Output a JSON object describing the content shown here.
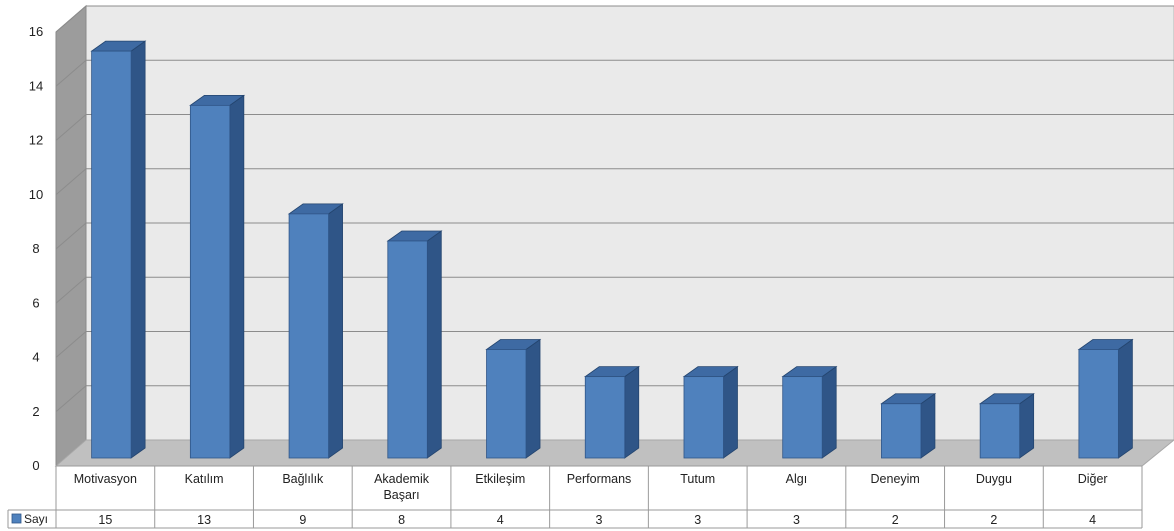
{
  "chart_data": {
    "type": "bar",
    "view": "3d-column-with-data-table",
    "categories": [
      "Motivasyon",
      "Katılım",
      "Bağlılık",
      "Akademik Başarı",
      "Etkileşim",
      "Performans",
      "Tutum",
      "Algı",
      "Deneyim",
      "Duygu",
      "Diğer"
    ],
    "series": [
      {
        "name": "Sayı",
        "values": [
          15,
          13,
          9,
          8,
          4,
          3,
          3,
          3,
          2,
          2,
          4
        ]
      }
    ],
    "ylim": [
      0,
      16
    ],
    "yticks": [
      0,
      2,
      4,
      6,
      8,
      10,
      12,
      14,
      16
    ],
    "grid": true,
    "legend": "data-table-left",
    "colors": {
      "bar_front": "#4f81bd",
      "bar_side": "#2f5587",
      "bar_top": "#3e6aa3",
      "back_wall": "#eaeaea",
      "side_wall": "#9c9c9c",
      "floor": "#c0c0c0",
      "grid": "#8c8c8c"
    }
  }
}
